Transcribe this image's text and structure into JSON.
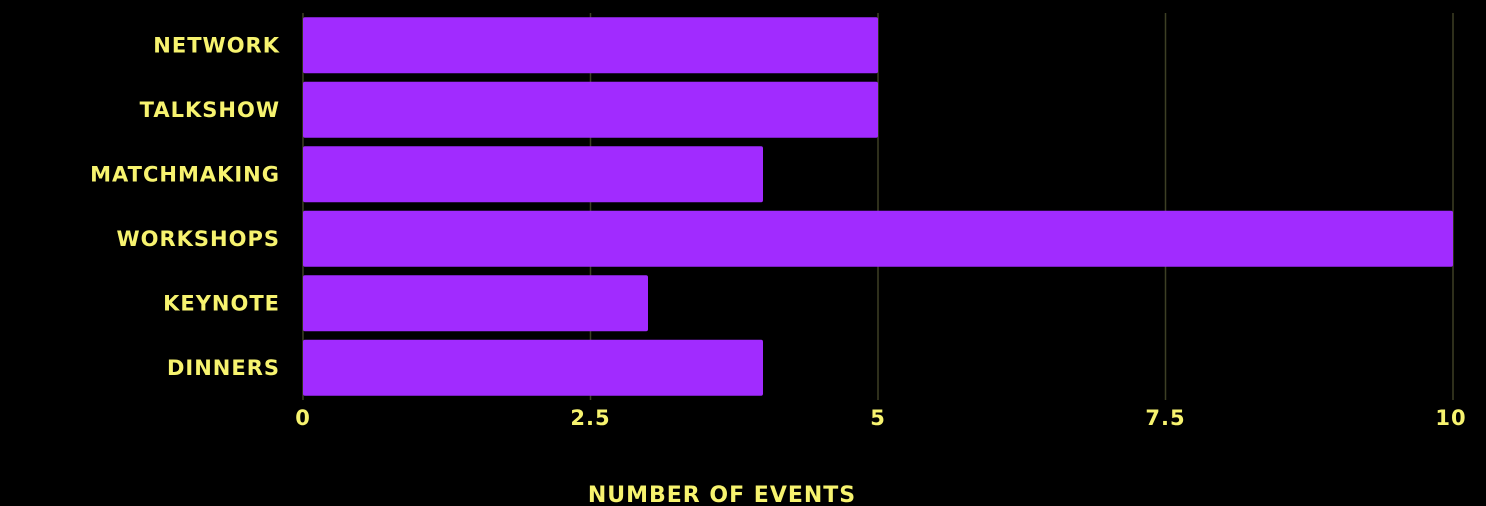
{
  "chart_data": {
    "type": "bar",
    "orientation": "horizontal",
    "categories": [
      "NETWORK",
      "TALKSHOW",
      "MATCHMAKING",
      "WORKSHOPS",
      "KEYNOTE",
      "DINNERS"
    ],
    "values": [
      5,
      5,
      4,
      10,
      3,
      4
    ],
    "xlabel": "NUMBER OF EVENTS",
    "ylabel": "",
    "xlim": [
      0,
      10
    ],
    "xticks": [
      "0",
      "2.5",
      "5",
      "7.5",
      "10"
    ],
    "grid": "vertical",
    "colors": {
      "background": "#000000",
      "bar": "#a12bff",
      "text": "#f7f36f",
      "grid": "#3d3f24"
    }
  }
}
